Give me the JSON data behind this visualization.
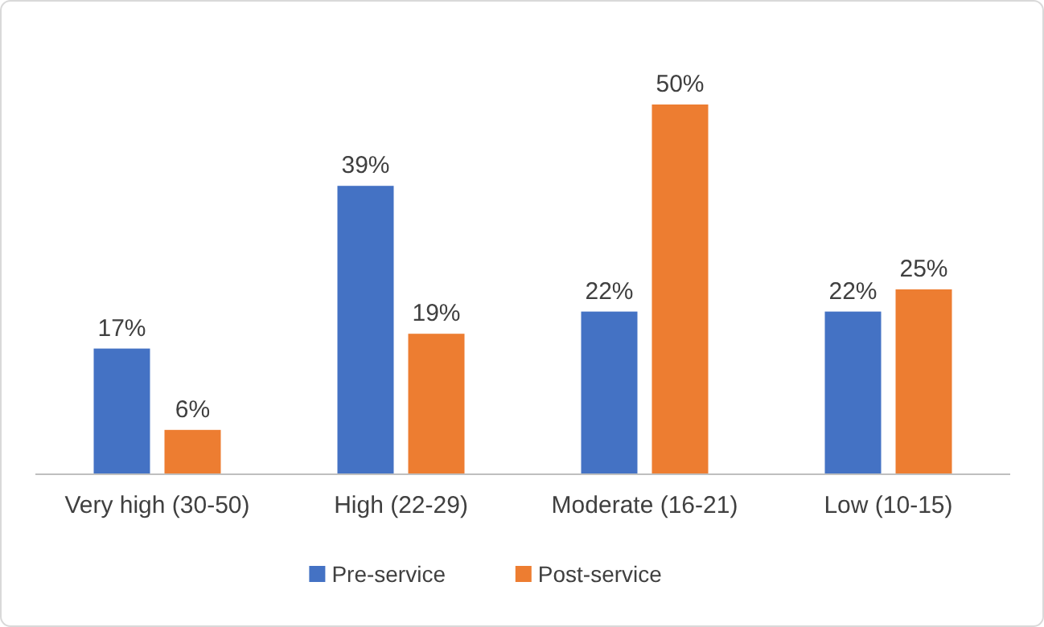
{
  "chart_data": {
    "type": "bar",
    "categories": [
      "Very high (30-50)",
      "High (22-29)",
      "Moderate (16-21)",
      "Low (10-15)"
    ],
    "series": [
      {
        "name": "Pre-service",
        "color": "#4472c4",
        "values": [
          17,
          39,
          22,
          22
        ],
        "value_labels": [
          "17%",
          "39%",
          "22%",
          "22%"
        ]
      },
      {
        "name": "Post-service",
        "color": "#ed7d31",
        "values": [
          6,
          19,
          50,
          25
        ],
        "value_labels": [
          "6%",
          "19%",
          "50%",
          "25%"
        ]
      }
    ],
    "legend": "bottom"
  }
}
